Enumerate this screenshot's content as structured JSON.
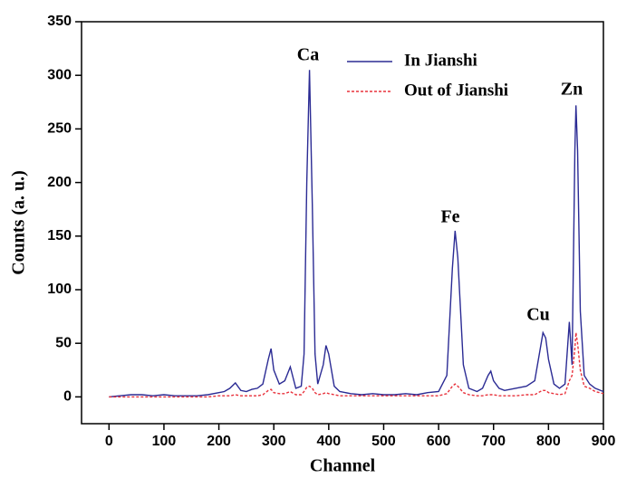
{
  "chart_data": {
    "type": "line",
    "x_label": "Channel",
    "y_label": "Counts (a. u.)",
    "annotations": [
      "Ca",
      "Fe",
      "Cu",
      "Zn"
    ],
    "x": [
      0,
      20,
      40,
      60,
      80,
      100,
      120,
      140,
      160,
      180,
      200,
      210,
      220,
      230,
      240,
      250,
      260,
      270,
      280,
      290,
      295,
      300,
      310,
      320,
      330,
      340,
      350,
      355,
      360,
      365,
      370,
      375,
      380,
      390,
      395,
      400,
      410,
      420,
      440,
      460,
      480,
      500,
      520,
      540,
      560,
      580,
      600,
      615,
      625,
      630,
      635,
      645,
      655,
      670,
      680,
      690,
      695,
      700,
      710,
      720,
      740,
      760,
      775,
      785,
      790,
      795,
      800,
      810,
      820,
      830,
      838,
      843,
      848,
      850,
      853,
      858,
      865,
      875,
      885,
      900
    ],
    "series": [
      {
        "name": "In Jianshi",
        "color": "#2b2b94",
        "dash": "solid",
        "values": [
          0,
          1,
          2,
          2,
          1,
          2,
          1,
          1,
          1,
          2,
          4,
          5,
          8,
          13,
          6,
          5,
          7,
          8,
          12,
          35,
          45,
          25,
          12,
          15,
          28,
          8,
          10,
          40,
          200,
          305,
          180,
          40,
          12,
          30,
          48,
          40,
          10,
          5,
          3,
          2,
          3,
          2,
          2,
          3,
          2,
          4,
          5,
          20,
          120,
          155,
          130,
          30,
          8,
          5,
          8,
          20,
          24,
          15,
          8,
          6,
          8,
          10,
          15,
          45,
          60,
          55,
          35,
          12,
          8,
          12,
          70,
          30,
          230,
          272,
          230,
          80,
          20,
          12,
          8,
          5
        ]
      },
      {
        "name": "Out of Jianshi",
        "color": "#e8323c",
        "dash": "dashed",
        "values": [
          0,
          0,
          0,
          0,
          0,
          0,
          0,
          0,
          0,
          0,
          1,
          1,
          1,
          2,
          1,
          1,
          1,
          1,
          2,
          6,
          7,
          4,
          3,
          3,
          5,
          2,
          2,
          5,
          9,
          10,
          8,
          4,
          2,
          3,
          4,
          3,
          2,
          1,
          1,
          1,
          1,
          1,
          1,
          1,
          1,
          1,
          1,
          3,
          10,
          12,
          10,
          4,
          2,
          1,
          1,
          2,
          2,
          2,
          1,
          1,
          1,
          2,
          2,
          5,
          6,
          6,
          4,
          3,
          2,
          3,
          15,
          20,
          45,
          60,
          50,
          25,
          10,
          8,
          5,
          3
        ]
      }
    ],
    "xlim": [
      -50,
      900
    ],
    "ylim": [
      -25,
      350
    ],
    "xticks": [
      0,
      100,
      200,
      300,
      400,
      500,
      600,
      700,
      800,
      900
    ],
    "yticks": [
      0,
      50,
      100,
      150,
      200,
      250,
      300,
      350
    ],
    "legend": "top"
  }
}
